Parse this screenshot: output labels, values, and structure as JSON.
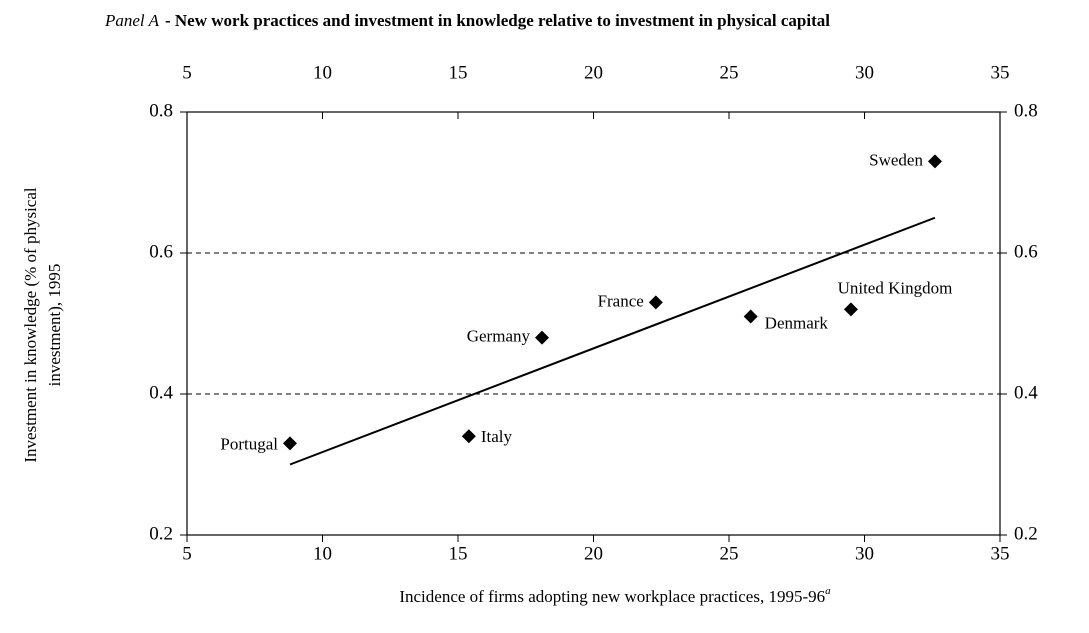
{
  "chart_data": {
    "type": "scatter",
    "panel": "Panel A",
    "title": "- New work practices and investment in knowledge relative to investment in physical capital",
    "xlabel": "Incidence of firms adopting new workplace practices, 1995-96",
    "xlabel_note": "a",
    "ylabel": [
      "Investment in knowledge (% of physical",
      "investment), 1995"
    ],
    "labels": [
      "Portugal",
      "Italy",
      "Germany",
      "France",
      "Denmark",
      "United Kingdom",
      "Sweden"
    ],
    "x": [
      8.8,
      15.4,
      18.1,
      22.3,
      25.8,
      29.5,
      32.6
    ],
    "y": [
      0.33,
      0.34,
      0.48,
      0.53,
      0.51,
      0.52,
      0.73
    ],
    "color": "#000000",
    "trendline": {
      "x": [
        8.8,
        32.6
      ],
      "y": [
        0.3,
        0.65
      ]
    },
    "xlim": [
      5,
      35
    ],
    "xticks": [
      5,
      10,
      15,
      20,
      25,
      30,
      35
    ],
    "ylim": [
      0.2,
      0.8
    ],
    "yticks": [
      0.2,
      0.4,
      0.6,
      0.8
    ],
    "grid": true
  }
}
